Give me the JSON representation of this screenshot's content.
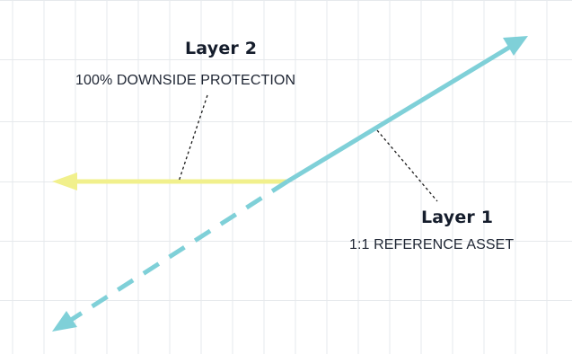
{
  "colors": {
    "background": "#ffffff",
    "grid": "#e6e9ec",
    "layer1_line": "#7fd0d8",
    "layer2_line": "#f1f08c",
    "leader": "#1a1a1a",
    "text": "#141c2b"
  },
  "layer2": {
    "title": "Layer 2",
    "subtitle": "100% DOWNSIDE PROTECTION"
  },
  "layer1": {
    "title": "Layer 1",
    "subtitle": "1:1 REFERENCE ASSET"
  }
}
